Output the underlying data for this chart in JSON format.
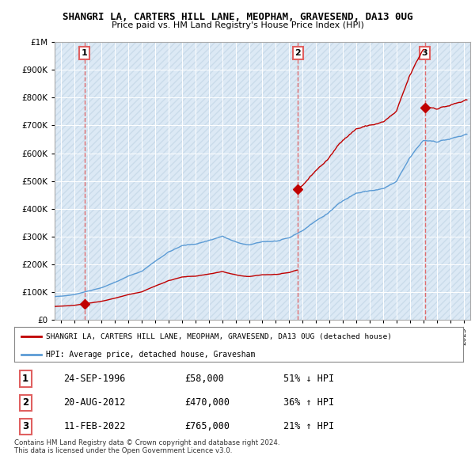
{
  "title": "SHANGRI LA, CARTERS HILL LANE, MEOPHAM, GRAVESEND, DA13 0UG",
  "subtitle": "Price paid vs. HM Land Registry's House Price Index (HPI)",
  "hpi_label": "HPI: Average price, detached house, Gravesham",
  "property_label": "SHANGRI LA, CARTERS HILL LANE, MEOPHAM, GRAVESEND, DA13 0UG (detached house)",
  "sale_points": [
    {
      "date": 1996.73,
      "price": 58000,
      "label": "1"
    },
    {
      "date": 2012.64,
      "price": 470000,
      "label": "2"
    },
    {
      "date": 2022.11,
      "price": 765000,
      "label": "3"
    }
  ],
  "sale_table": [
    {
      "num": "1",
      "date": "24-SEP-1996",
      "price": "£58,000",
      "hpi": "51% ↓ HPI"
    },
    {
      "num": "2",
      "date": "20-AUG-2012",
      "price": "£470,000",
      "hpi": "36% ↑ HPI"
    },
    {
      "num": "3",
      "date": "11-FEB-2022",
      "price": "£765,000",
      "hpi": "21% ↑ HPI"
    }
  ],
  "footer": "Contains HM Land Registry data © Crown copyright and database right 2024.\nThis data is licensed under the Open Government Licence v3.0.",
  "hpi_color": "#5b9bd5",
  "property_color": "#c00000",
  "sale_vline_color": "#e06060",
  "bg_color": "#dce9f5",
  "hatch_color": "#c5d8ed",
  "grid_color": "#ffffff",
  "ylim": [
    0,
    1000000
  ],
  "xlim": [
    1994.5,
    2025.5
  ],
  "yticks": [
    0,
    100000,
    200000,
    300000,
    400000,
    500000,
    600000,
    700000,
    800000,
    900000,
    1000000
  ]
}
